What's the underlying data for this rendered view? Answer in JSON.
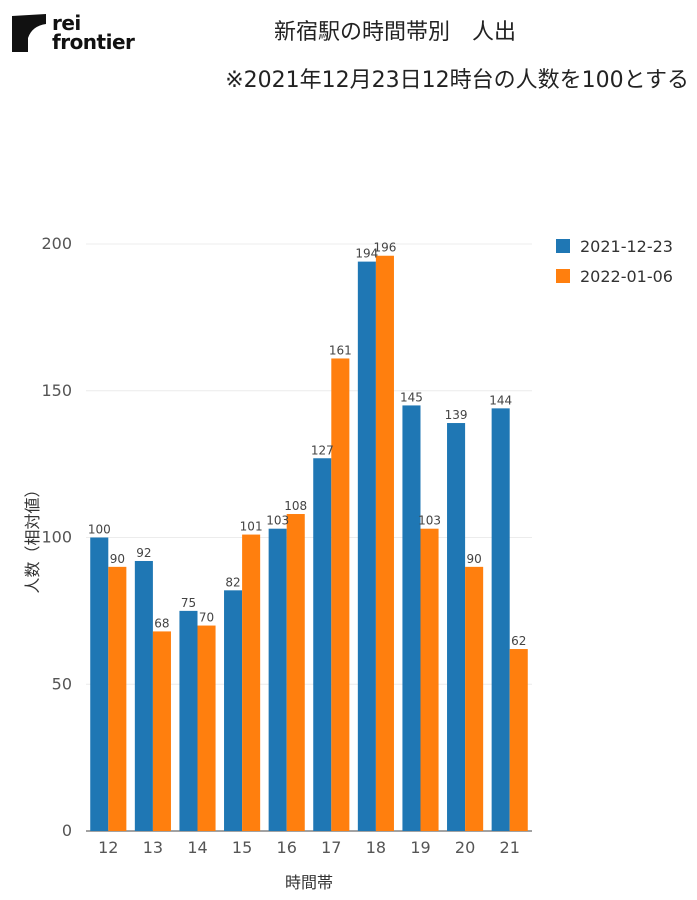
{
  "logo": {
    "line1": "rei",
    "line2": "frontier"
  },
  "chart_data": {
    "type": "bar",
    "title": "新宿駅の時間帯別　人出",
    "subtitle": "※2021年12月23日12時台の人数を100とする",
    "xlabel": "時間帯",
    "ylabel": "人数（相対値）",
    "categories": [
      "12",
      "13",
      "14",
      "15",
      "16",
      "17",
      "18",
      "19",
      "20",
      "21"
    ],
    "series": [
      {
        "name": "2021-12-23",
        "color": "#1f77b4",
        "values": [
          100,
          92,
          75,
          82,
          103,
          127,
          194,
          145,
          139,
          144
        ]
      },
      {
        "name": "2022-01-06",
        "color": "#ff7f0e",
        "values": [
          90,
          68,
          70,
          101,
          108,
          161,
          196,
          103,
          90,
          62
        ]
      }
    ],
    "ylim": [
      0,
      200
    ],
    "yticks": [
      0,
      50,
      100,
      150,
      200
    ],
    "grid": true,
    "legend": "top-right"
  }
}
